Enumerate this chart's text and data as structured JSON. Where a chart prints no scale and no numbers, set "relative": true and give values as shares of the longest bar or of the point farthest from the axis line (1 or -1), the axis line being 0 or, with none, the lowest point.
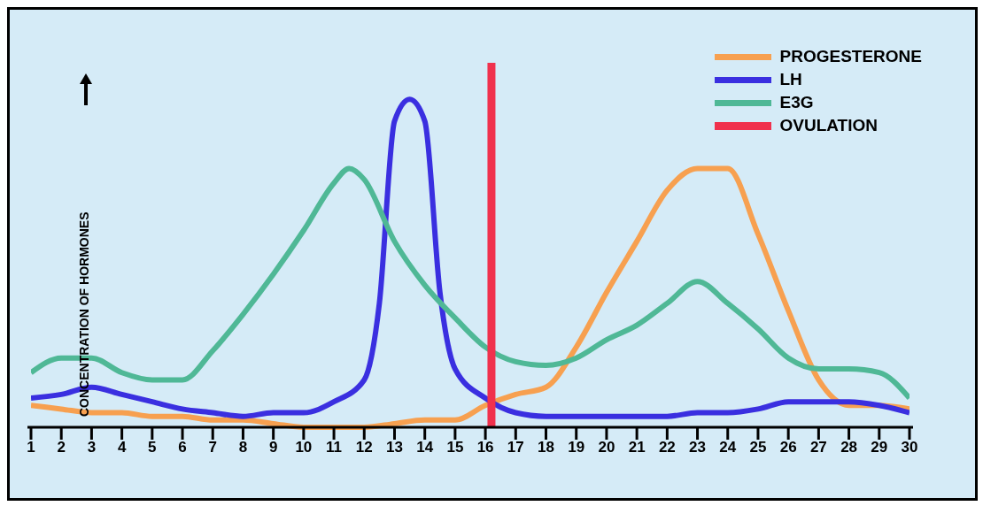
{
  "chart_data": {
    "type": "line",
    "relative": true,
    "ylabel": "CONCENTRATION OF HORMONES",
    "xlim": [
      1,
      30
    ],
    "xticks": [
      1,
      2,
      3,
      4,
      5,
      6,
      7,
      8,
      9,
      10,
      11,
      12,
      13,
      14,
      15,
      16,
      17,
      18,
      19,
      20,
      21,
      22,
      23,
      24,
      25,
      26,
      27,
      28,
      29,
      30
    ],
    "grid": false,
    "legend": "top right",
    "marker": "none",
    "line_style": "solid",
    "series": [
      {
        "name": "PROGESTERONE",
        "color": "#f7a050",
        "x": [
          1,
          2,
          3,
          4,
          5,
          6,
          7,
          8,
          9,
          10,
          11,
          12,
          13,
          14,
          15,
          16,
          17,
          18,
          19,
          20,
          21,
          22,
          23,
          24,
          25,
          26,
          27,
          28,
          29,
          30
        ],
        "values": [
          0.06,
          0.05,
          0.04,
          0.04,
          0.03,
          0.03,
          0.02,
          0.02,
          0.01,
          0.0,
          0.0,
          0.0,
          0.01,
          0.02,
          0.02,
          0.06,
          0.09,
          0.11,
          0.22,
          0.37,
          0.51,
          0.65,
          0.71,
          0.71,
          0.53,
          0.32,
          0.13,
          0.06,
          0.06,
          0.05
        ]
      },
      {
        "name": "LH",
        "color": "#3a2fe0",
        "x": [
          1,
          2,
          3,
          4,
          5,
          6,
          7,
          8,
          9,
          10,
          11,
          12,
          12.5,
          13,
          13.5,
          14,
          14.5,
          15,
          16,
          17,
          18,
          20,
          22,
          23,
          24,
          25,
          26,
          27,
          28,
          29,
          30
        ],
        "values": [
          0.08,
          0.09,
          0.11,
          0.09,
          0.07,
          0.05,
          0.04,
          0.03,
          0.04,
          0.04,
          0.07,
          0.13,
          0.34,
          0.84,
          0.9,
          0.84,
          0.37,
          0.16,
          0.08,
          0.04,
          0.03,
          0.03,
          0.03,
          0.04,
          0.04,
          0.05,
          0.07,
          0.07,
          0.07,
          0.06,
          0.04
        ]
      },
      {
        "name": "E3G",
        "color": "#4fb896",
        "x": [
          1,
          2,
          3,
          4,
          5,
          6,
          7,
          8,
          9,
          10,
          11,
          11.5,
          12,
          13,
          14,
          15,
          16,
          17,
          18,
          19,
          20,
          21,
          22,
          23,
          24,
          25,
          26,
          27,
          28,
          29,
          30
        ],
        "values": [
          0.15,
          0.19,
          0.19,
          0.15,
          0.13,
          0.13,
          0.21,
          0.31,
          0.42,
          0.54,
          0.67,
          0.71,
          0.68,
          0.51,
          0.39,
          0.3,
          0.22,
          0.18,
          0.17,
          0.19,
          0.24,
          0.28,
          0.34,
          0.4,
          0.34,
          0.27,
          0.19,
          0.16,
          0.16,
          0.15,
          0.08
        ]
      },
      {
        "name": "OVULATION",
        "color": "#f0314d",
        "x": [
          16.2,
          16.2
        ],
        "values": [
          0,
          1
        ]
      }
    ]
  }
}
